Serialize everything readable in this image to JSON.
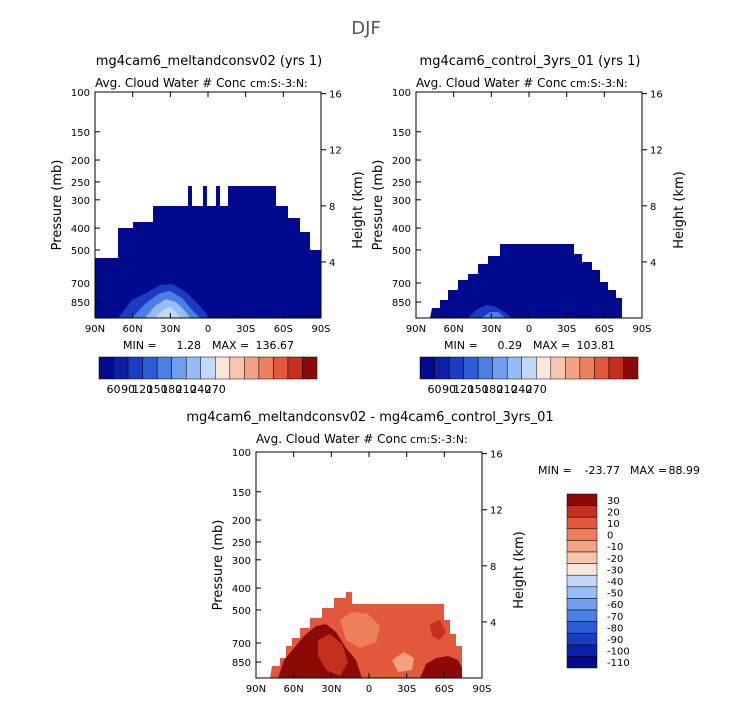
{
  "figure": {
    "title": "DJF"
  },
  "cbar_a": {
    "colors": [
      "#000a8c",
      "#0c1fa8",
      "#1b3cc2",
      "#2b5bd6",
      "#4a7fe3",
      "#6f9fee",
      "#98bcf5",
      "#c4d9fa",
      "#fce6da",
      "#f8c6ad",
      "#f3a383",
      "#ee7f5c",
      "#e1583a",
      "#c42f1e",
      "#8c0a05"
    ],
    "labels": [
      "60",
      "90",
      "120",
      "150",
      "180",
      "210",
      "240",
      "270"
    ]
  },
  "cbar_b": {
    "colors": [
      "#000a8c",
      "#0c1fa8",
      "#1b3cc2",
      "#2b5bd6",
      "#4a7fe3",
      "#6f9fee",
      "#98bcf5",
      "#c4d9fa",
      "#fce6da",
      "#f8c6ad",
      "#f3a383",
      "#ee7f5c",
      "#e1583a",
      "#c42f1e",
      "#8c0a05"
    ],
    "labels": [
      "60",
      "90",
      "120",
      "150",
      "180",
      "210",
      "240",
      "270"
    ]
  },
  "cbar_diff": {
    "colors": [
      "#8c0a05",
      "#c42f1e",
      "#e1583a",
      "#ee7f5c",
      "#f3a383",
      "#f8c6ad",
      "#fce6da",
      "#c4d9fa",
      "#98bcf5",
      "#6f9fee",
      "#4a7fe3",
      "#2b5bd6",
      "#1b3cc2",
      "#0c1fa8",
      "#000a8c"
    ],
    "labels": [
      "30",
      "20",
      "10",
      "0",
      "-10",
      "-20",
      "-30",
      "-40",
      "-50",
      "-60",
      "-70",
      "-80",
      "-90",
      "-100",
      "-110"
    ]
  },
  "chart_data": [
    {
      "type": "contour",
      "id": "a",
      "title": "mg4cam6_meltandconsv02 (yrs 1)",
      "subtitle": "Avg. Cloud Water # Conc",
      "units": "cm:S:-3:N:",
      "ylabel": "Pressure (mb)",
      "y2label": "Height (km)",
      "x_ticks": [
        "90N",
        "60N",
        "30N",
        "0",
        "30S",
        "60S",
        "90S"
      ],
      "y_ticks": [
        "100",
        "150",
        "200",
        "250",
        "300",
        "400",
        "500",
        "700",
        "850"
      ],
      "y2_ticks": [
        "16",
        "12",
        "8",
        "4"
      ],
      "stats": {
        "min": "1.28",
        "max": "136.67"
      },
      "min_label": "MIN =",
      "max_label": "MAX ="
    },
    {
      "type": "contour",
      "id": "b",
      "title": "mg4cam6_control_3yrs_01 (yrs 1)",
      "subtitle": "Avg. Cloud Water # Conc",
      "units": "cm:S:-3:N:",
      "ylabel": "Pressure (mb)",
      "y2label": "Height (km)",
      "x_ticks": [
        "90N",
        "60N",
        "30N",
        "0",
        "30S",
        "60S",
        "90S"
      ],
      "y_ticks": [
        "100",
        "150",
        "200",
        "250",
        "300",
        "400",
        "500",
        "700",
        "850"
      ],
      "y2_ticks": [
        "16",
        "12",
        "8",
        "4"
      ],
      "stats": {
        "min": "0.29",
        "max": "103.81"
      },
      "min_label": "MIN =",
      "max_label": "MAX ="
    },
    {
      "type": "contour",
      "id": "diff",
      "title": "mg4cam6_meltandconsv02 - mg4cam6_control_3yrs_01",
      "subtitle": "Avg. Cloud Water # Conc",
      "units": "cm:S:-3:N:",
      "ylabel": "Pressure (mb)",
      "y2label": "Height (km)",
      "x_ticks": [
        "90N",
        "60N",
        "30N",
        "0",
        "30S",
        "60S",
        "90S"
      ],
      "y_ticks": [
        "100",
        "150",
        "200",
        "250",
        "300",
        "400",
        "500",
        "700",
        "850"
      ],
      "y2_ticks": [
        "16",
        "12",
        "8",
        "4"
      ],
      "stats": {
        "min": "-23.77",
        "max": "88.99"
      },
      "min_label": "MIN =",
      "max_label": "MAX ="
    }
  ]
}
